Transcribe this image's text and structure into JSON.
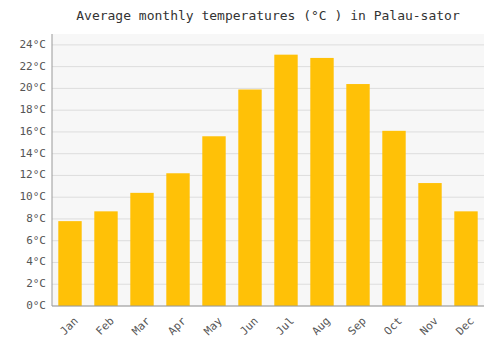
{
  "chart_data": {
    "type": "bar",
    "title": "Average monthly temperatures (°C ) in Palau-sator",
    "categories": [
      "Jan",
      "Feb",
      "Mar",
      "Apr",
      "May",
      "Jun",
      "Jul",
      "Aug",
      "Sep",
      "Oct",
      "Nov",
      "Dec"
    ],
    "values": [
      7.8,
      8.7,
      10.4,
      12.2,
      15.6,
      19.9,
      23.1,
      22.8,
      20.4,
      16.1,
      11.3,
      8.7
    ],
    "color": "#FFC107",
    "ylim": [
      0,
      25
    ],
    "yticks": [
      {
        "value": 0,
        "label": "0°C"
      },
      {
        "value": 2,
        "label": "2°C"
      },
      {
        "value": 4,
        "label": "4°C"
      },
      {
        "value": 6,
        "label": "6°C"
      },
      {
        "value": 8,
        "label": "8°C"
      },
      {
        "value": 10,
        "label": "10°C"
      },
      {
        "value": 12,
        "label": "12°C"
      },
      {
        "value": 14,
        "label": "14°C"
      },
      {
        "value": 16,
        "label": "16°C"
      },
      {
        "value": 18,
        "label": "18°C"
      },
      {
        "value": 20,
        "label": "20°C"
      },
      {
        "value": 22,
        "label": "22°C"
      },
      {
        "value": 24,
        "label": "24°C"
      }
    ],
    "grid": true
  }
}
